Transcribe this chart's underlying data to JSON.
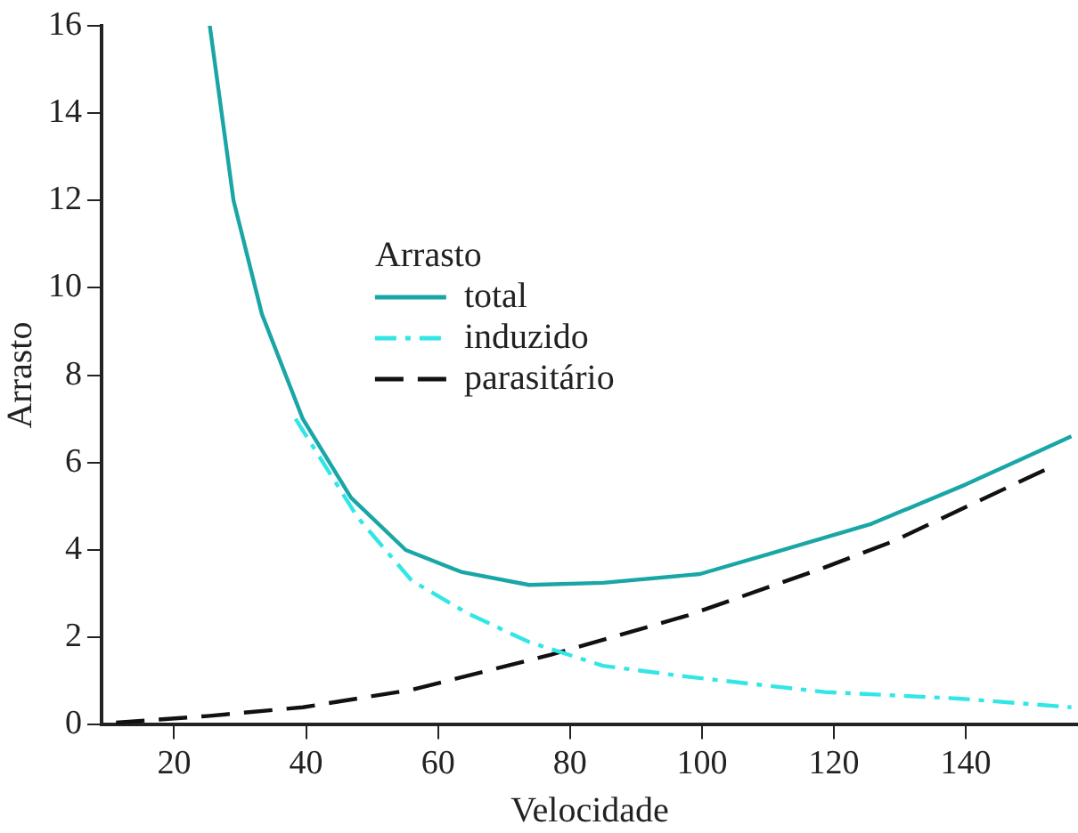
{
  "chart_data": {
    "type": "line",
    "xlabel": "Velocidade",
    "ylabel": "Arrasto",
    "legend_title": "Arrasto",
    "legend": "top",
    "grid": false,
    "marker": "none",
    "xlim": [
      9,
      157
    ],
    "xticks": [
      20,
      40,
      60,
      80,
      100,
      120,
      140
    ],
    "ylim": [
      0,
      16
    ],
    "yticks": [
      0,
      2,
      4,
      6,
      8,
      10,
      12,
      14,
      16
    ],
    "series": [
      {
        "name": "total",
        "color": "#1aa6a6",
        "line_style": "solid",
        "x": [
          25.4,
          29,
          33.3,
          39.5,
          46.8,
          55.1,
          63.5,
          73.8,
          85,
          99.7,
          110,
          125.7,
          140,
          156
        ],
        "values": [
          16,
          12,
          9.4,
          7.0,
          5.2,
          4.0,
          3.5,
          3.2,
          3.25,
          3.45,
          3.9,
          4.6,
          5.5,
          6.6
        ]
      },
      {
        "name": "induzido",
        "color": "#33e6e6",
        "line_style": "dotted",
        "x": [
          38.4,
          47.8,
          56,
          64.5,
          73.7,
          85,
          97.8,
          118.6,
          139,
          156
        ],
        "values": [
          7.0,
          4.75,
          3.3,
          2.55,
          1.9,
          1.35,
          1.1,
          0.75,
          0.6,
          0.4
        ]
      },
      {
        "name": "parasitário",
        "color": "#111111",
        "line_style": "dashed",
        "x": [
          11.2,
          25,
          39.5,
          56,
          77,
          97.8,
          118.6,
          129,
          152.9
        ],
        "values": [
          0.05,
          0.2,
          0.4,
          0.8,
          1.6,
          2.5,
          3.6,
          4.2,
          5.9
        ]
      }
    ]
  }
}
